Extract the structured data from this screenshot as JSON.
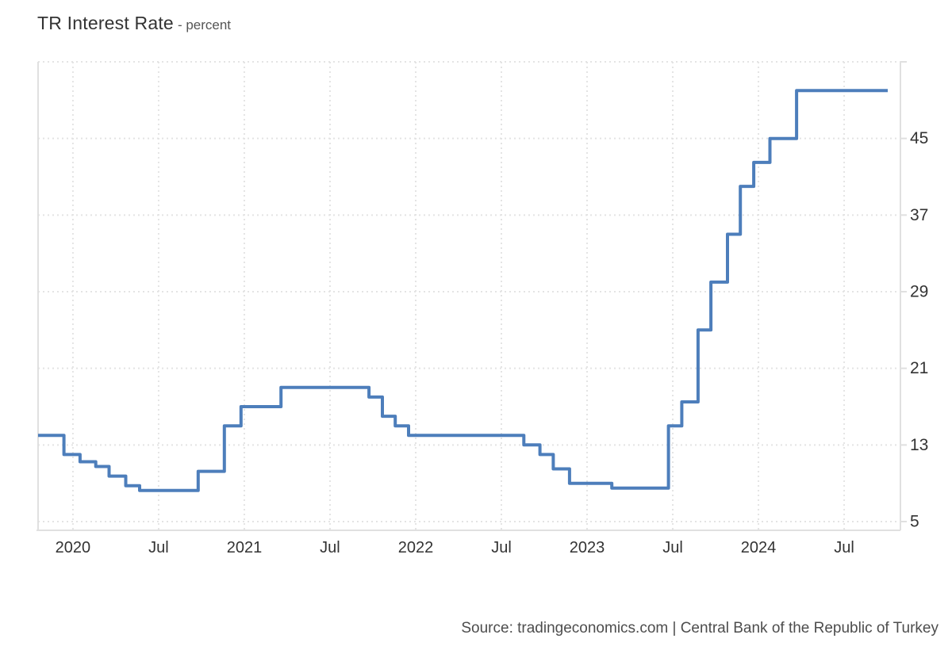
{
  "page": {
    "title": "TR Interest Rate",
    "subtitle": "- percent",
    "source": "Source: tradingeconomics.com | Central Bank of the Republic of Turkey"
  },
  "chart_data": {
    "type": "line",
    "step": true,
    "title": "TR Interest Rate",
    "xlabel": "",
    "ylabel": "percent",
    "series_name": "TR Interest Rate",
    "line_color": "#4d7ebb",
    "grid_color": "#e4e4e4",
    "axis_color": "#e0e0e0",
    "label_color": "#333333",
    "x_domain_months_from_2020_01": [
      -2.44,
      57.94
    ],
    "y_domain": [
      4.09,
      53
    ],
    "y_gridlines": [
      5,
      13,
      21,
      29,
      37,
      45,
      53
    ],
    "y_tick_labels": [
      45,
      37,
      29,
      21,
      13,
      5
    ],
    "x_ticks": [
      {
        "m": 0,
        "label": "2020"
      },
      {
        "m": 6,
        "label": "Jul"
      },
      {
        "m": 12,
        "label": "2021"
      },
      {
        "m": 18,
        "label": "Jul"
      },
      {
        "m": 24,
        "label": "2022"
      },
      {
        "m": 30,
        "label": "Jul"
      },
      {
        "m": 36,
        "label": "2023"
      },
      {
        "m": 42,
        "label": "Jul"
      },
      {
        "m": 48,
        "label": "2024"
      },
      {
        "m": 54,
        "label": "Jul"
      }
    ],
    "points": [
      {
        "date": "2019-10-24",
        "m": -2.44,
        "value": 14
      },
      {
        "date": "2019-12-12",
        "m": -0.63,
        "value": 12
      },
      {
        "date": "2020-01-16",
        "m": 0.5,
        "value": 11.25
      },
      {
        "date": "2020-02-19",
        "m": 1.6,
        "value": 10.75
      },
      {
        "date": "2020-03-17",
        "m": 2.53,
        "value": 9.75
      },
      {
        "date": "2020-04-22",
        "m": 3.7,
        "value": 8.75
      },
      {
        "date": "2020-05-21",
        "m": 4.67,
        "value": 8.25
      },
      {
        "date": "2020-09-24",
        "m": 8.77,
        "value": 10.25
      },
      {
        "date": "2020-11-19",
        "m": 10.6,
        "value": 15
      },
      {
        "date": "2020-12-24",
        "m": 11.77,
        "value": 17
      },
      {
        "date": "2021-03-18",
        "m": 14.57,
        "value": 19
      },
      {
        "date": "2021-09-23",
        "m": 20.73,
        "value": 18
      },
      {
        "date": "2021-10-21",
        "m": 21.67,
        "value": 16
      },
      {
        "date": "2021-11-18",
        "m": 22.57,
        "value": 15
      },
      {
        "date": "2021-12-16",
        "m": 23.5,
        "value": 14
      },
      {
        "date": "2022-08-18",
        "m": 31.57,
        "value": 13
      },
      {
        "date": "2022-09-22",
        "m": 32.7,
        "value": 12
      },
      {
        "date": "2022-10-20",
        "m": 33.63,
        "value": 10.5
      },
      {
        "date": "2022-11-24",
        "m": 34.77,
        "value": 9
      },
      {
        "date": "2023-02-23",
        "m": 37.73,
        "value": 8.5
      },
      {
        "date": "2023-06-22",
        "m": 41.7,
        "value": 15
      },
      {
        "date": "2023-07-20",
        "m": 42.63,
        "value": 17.5
      },
      {
        "date": "2023-08-24",
        "m": 43.77,
        "value": 25
      },
      {
        "date": "2023-09-21",
        "m": 44.67,
        "value": 30
      },
      {
        "date": "2023-10-26",
        "m": 45.83,
        "value": 35
      },
      {
        "date": "2023-11-23",
        "m": 46.73,
        "value": 40
      },
      {
        "date": "2023-12-21",
        "m": 47.67,
        "value": 42.5
      },
      {
        "date": "2024-01-25",
        "m": 48.8,
        "value": 45
      },
      {
        "date": "2024-03-21",
        "m": 50.67,
        "value": 50
      },
      {
        "date": "2024-10-17",
        "m": 57.05,
        "value": 50
      }
    ]
  }
}
